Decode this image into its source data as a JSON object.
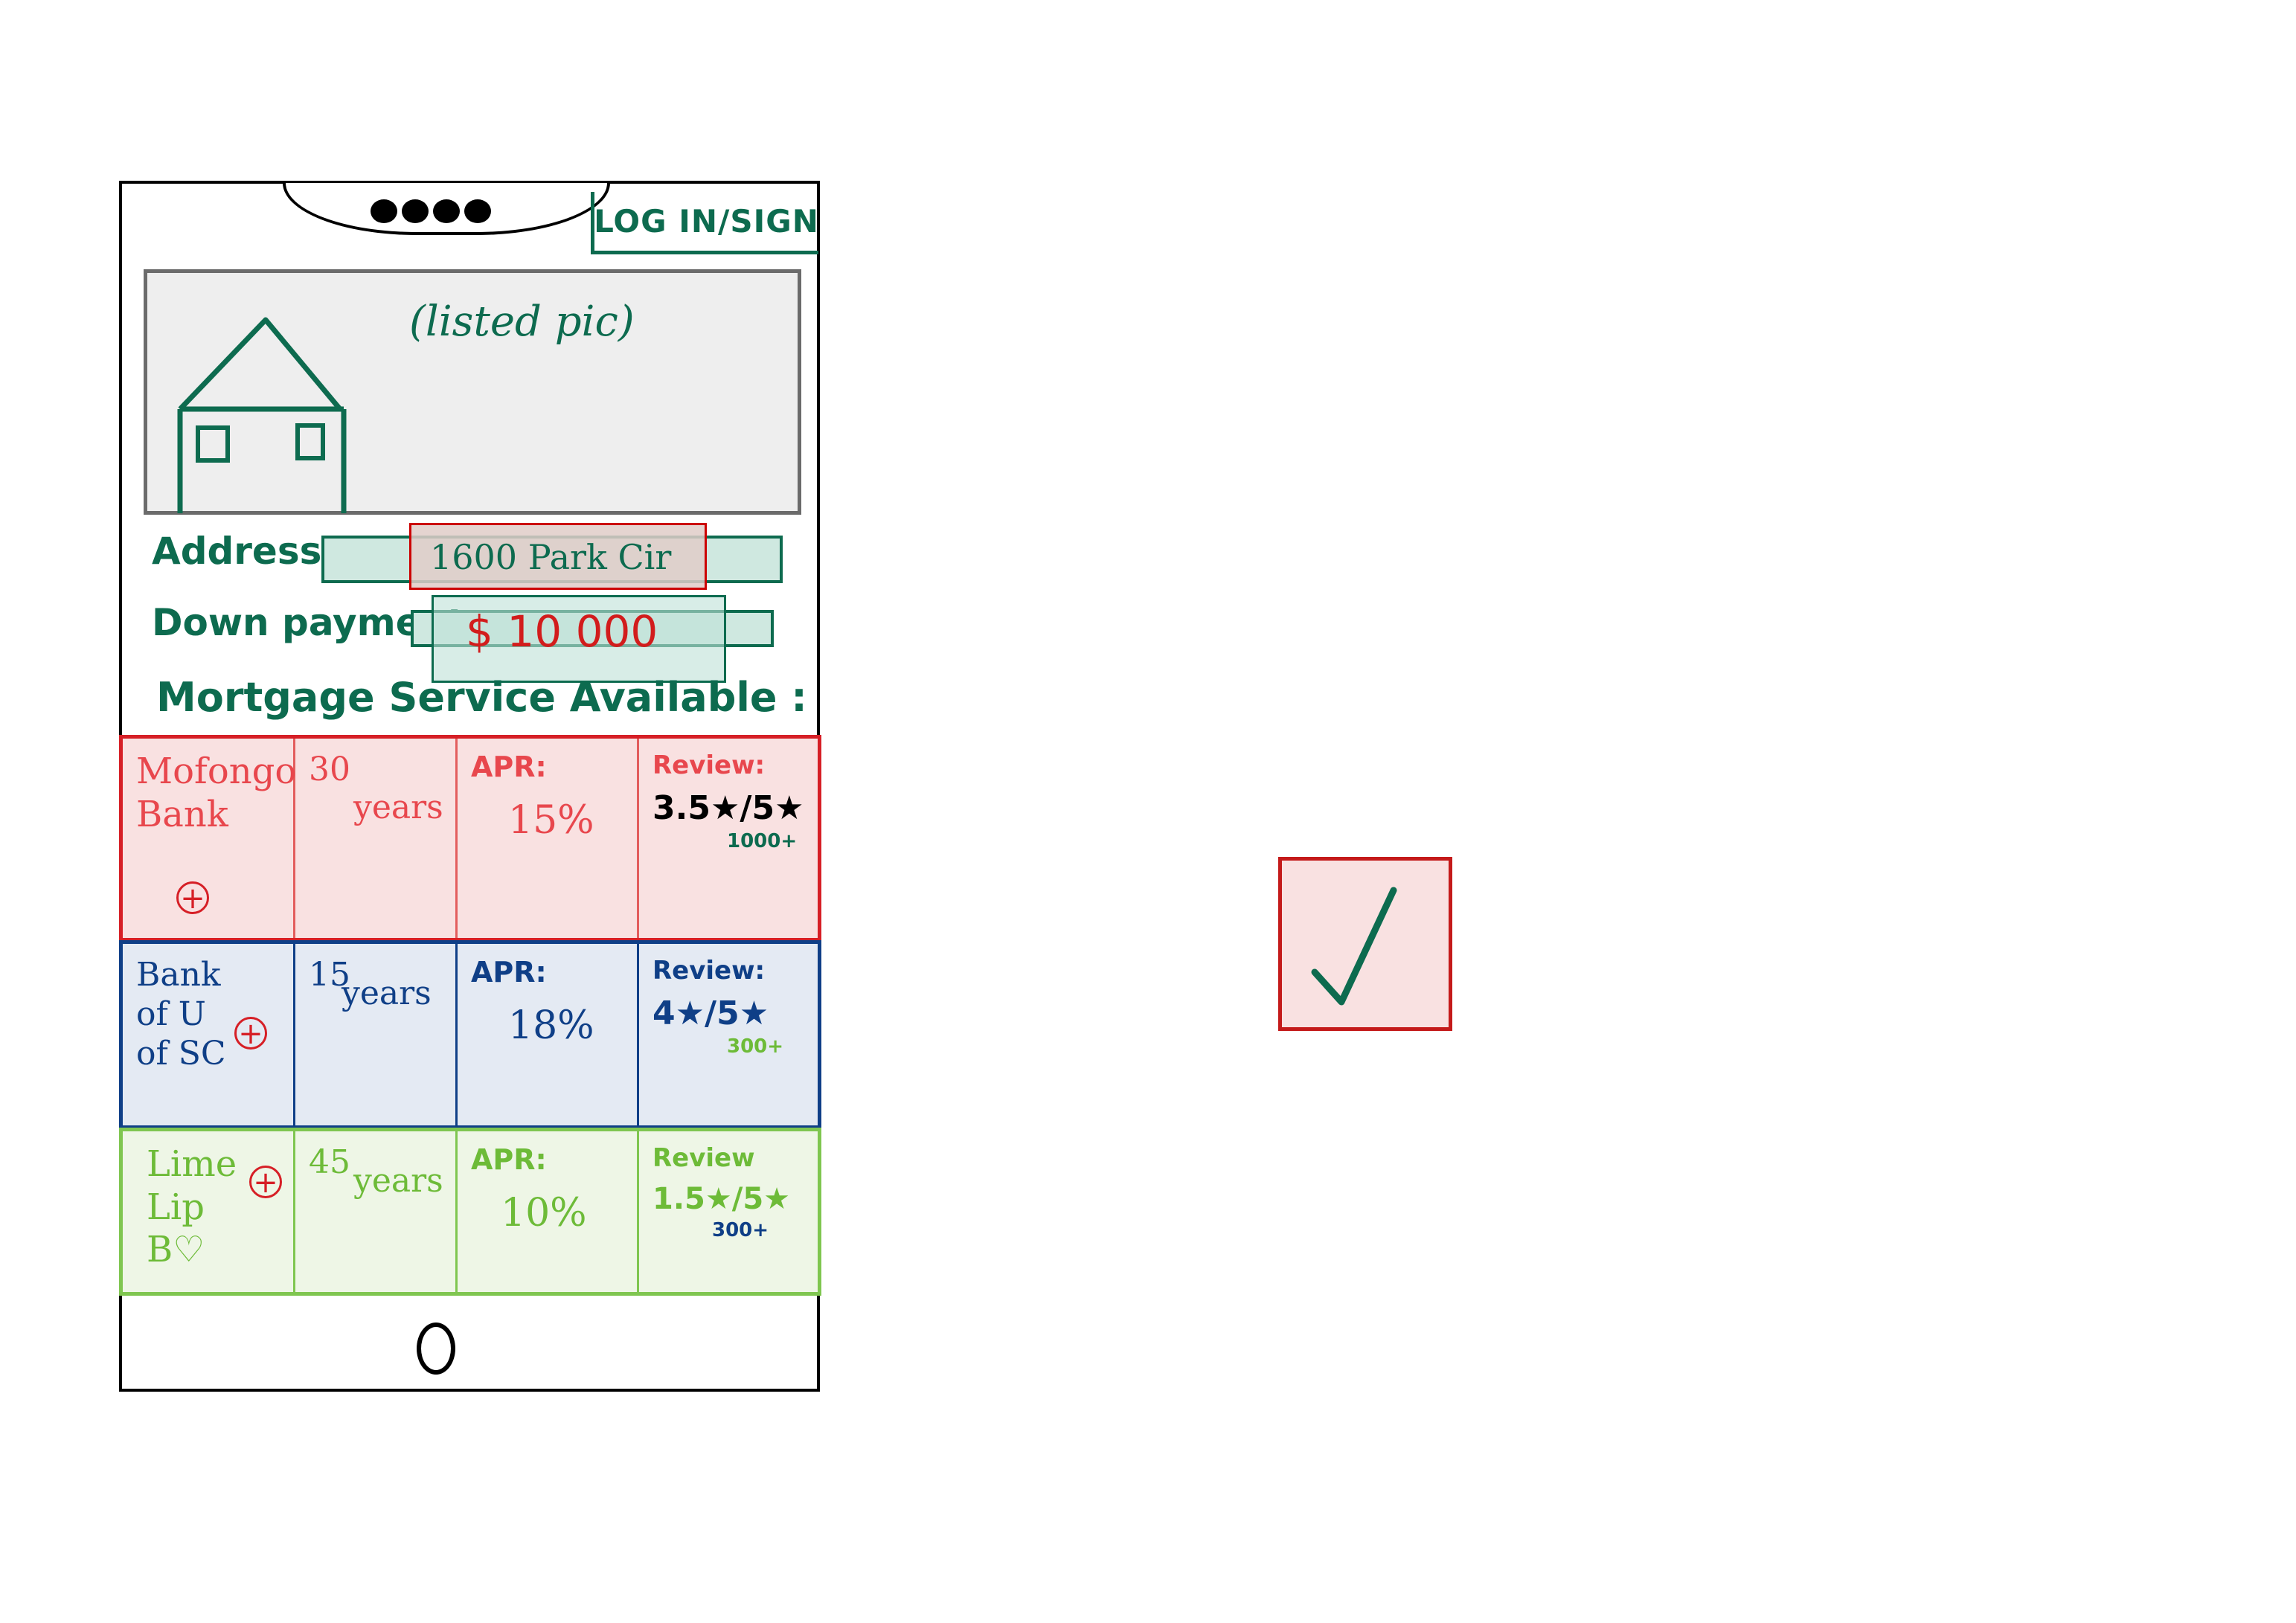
{
  "header": {
    "login_label": "LOG IN/SIGN"
  },
  "listing": {
    "pic_label": "(listed pic)"
  },
  "form": {
    "address_label": "Address :",
    "address_value": "1600 Park Cir",
    "down_label": "Down payment :",
    "down_value": "$ 10 000",
    "mortgage_heading": "Mortgage Service Available :"
  },
  "services": [
    {
      "bank": "Mofongo Bank",
      "term_num": "30",
      "term_unit": "years",
      "apr_label": "APR:",
      "apr": "15%",
      "review_label": "Review:",
      "rating": "3.5★/5★",
      "review_count": "1000+"
    },
    {
      "bank": "Bank of U of SC",
      "term_num": "15",
      "term_unit": "years",
      "apr_label": "APR:",
      "apr": "18%",
      "review_label": "Review:",
      "rating": "4★/5★",
      "review_count": "300+"
    },
    {
      "bank": "Lime Lip B♡",
      "term_num": "45",
      "term_unit": "years",
      "apr_label": "APR:",
      "apr": "10%",
      "review_label": "Review",
      "rating": "1.5★/5★",
      "review_count": "300+"
    }
  ],
  "confirm": {
    "check": "✓"
  },
  "colors": {
    "primary": "#0d6b4f",
    "row1": "#d61f26",
    "row2": "#0f3f87",
    "row3": "#7fc650"
  },
  "icons": [
    "house-icon",
    "add-icon",
    "check-icon"
  ]
}
